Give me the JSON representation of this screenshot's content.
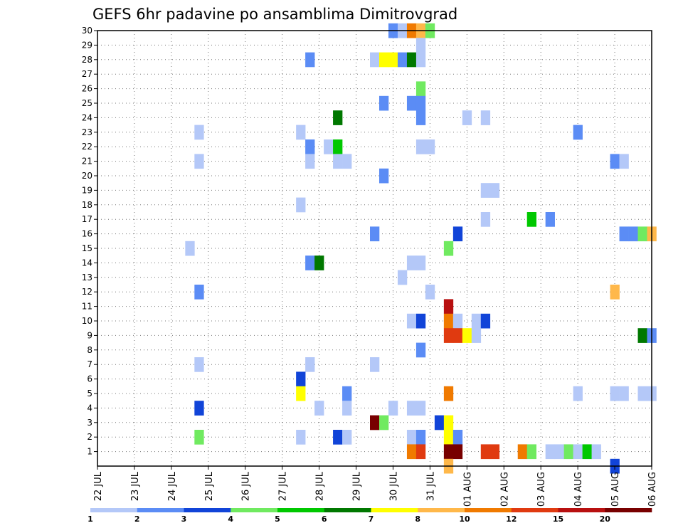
{
  "chart_data": {
    "type": "heatmap",
    "title": "GEFS 6hr padavine po ansamblima Dimitrovgrad",
    "x_ticks": [
      "22 JUL",
      "23 JUL",
      "24 JUL",
      "25 JUL",
      "26 JUL",
      "27 JUL",
      "28 JUL",
      "29 JUL",
      "30 JUL",
      "31 JUL",
      "01 AUG",
      "02 AUG",
      "03 AUG",
      "04 AUG",
      "05 AUG",
      "06 AUG"
    ],
    "xlim": [
      0,
      60
    ],
    "y_ticks": [
      "1",
      "2",
      "3",
      "4",
      "5",
      "6",
      "7",
      "8",
      "9",
      "10",
      "11",
      "12",
      "13",
      "14",
      "15",
      "16",
      "17",
      "18",
      "19",
      "20",
      "21",
      "22",
      "23",
      "24",
      "25",
      "26",
      "27",
      "28",
      "29",
      "30"
    ],
    "ylim": [
      0,
      30
    ],
    "colorbar_labels": [
      "1",
      "2",
      "3",
      "4",
      "5",
      "6",
      "7",
      "8",
      "10",
      "12",
      "15",
      "20"
    ],
    "colors": [
      "#b4c8f8",
      "#5b8cf5",
      "#1144d8",
      "#70ea60",
      "#00c800",
      "#007800",
      "#ffff00",
      "#ffb84a",
      "#f07a00",
      "#e03a10",
      "#b81010",
      "#780000"
    ],
    "cells": [
      [
        32,
        30,
        1
      ],
      [
        33,
        30,
        0
      ],
      [
        34,
        30,
        8
      ],
      [
        35,
        30,
        7
      ],
      [
        36,
        30,
        3
      ],
      [
        35,
        29,
        0
      ],
      [
        23,
        28,
        1
      ],
      [
        30,
        28,
        0
      ],
      [
        31,
        28,
        6
      ],
      [
        32,
        28,
        6
      ],
      [
        33,
        28,
        1
      ],
      [
        34,
        28,
        5
      ],
      [
        35,
        28,
        0
      ],
      [
        35,
        26,
        3
      ],
      [
        31,
        25,
        1
      ],
      [
        34,
        25,
        1
      ],
      [
        35,
        25,
        1
      ],
      [
        26,
        24,
        5
      ],
      [
        35,
        24,
        1
      ],
      [
        40,
        24,
        0
      ],
      [
        42,
        24,
        0
      ],
      [
        11,
        23,
        0
      ],
      [
        22,
        23,
        0
      ],
      [
        52,
        23,
        1
      ],
      [
        23,
        22,
        1
      ],
      [
        25,
        22,
        0
      ],
      [
        26,
        22,
        4
      ],
      [
        35,
        22,
        0
      ],
      [
        36,
        22,
        0
      ],
      [
        11,
        21,
        0
      ],
      [
        23,
        21,
        0
      ],
      [
        26,
        21,
        0
      ],
      [
        27,
        21,
        0
      ],
      [
        56,
        21,
        1
      ],
      [
        57,
        21,
        0
      ],
      [
        31,
        20,
        1
      ],
      [
        42,
        19,
        0
      ],
      [
        43,
        19,
        0
      ],
      [
        22,
        18,
        0
      ],
      [
        42,
        17,
        0
      ],
      [
        47,
        17,
        4
      ],
      [
        49,
        17,
        1
      ],
      [
        30,
        16,
        1
      ],
      [
        39,
        16,
        2
      ],
      [
        57,
        16,
        1
      ],
      [
        58,
        16,
        1
      ],
      [
        59,
        16,
        3
      ],
      [
        60,
        16,
        7
      ],
      [
        10,
        15,
        0
      ],
      [
        38,
        15,
        3
      ],
      [
        23,
        14,
        1
      ],
      [
        24,
        14,
        5
      ],
      [
        34,
        14,
        0
      ],
      [
        35,
        14,
        0
      ],
      [
        33,
        13,
        0
      ],
      [
        11,
        12,
        1
      ],
      [
        36,
        12,
        0
      ],
      [
        56,
        12,
        7
      ],
      [
        38,
        11,
        10
      ],
      [
        34,
        10,
        0
      ],
      [
        35,
        10,
        2
      ],
      [
        38,
        10,
        8
      ],
      [
        39,
        10,
        0
      ],
      [
        41,
        10,
        0
      ],
      [
        42,
        10,
        2
      ],
      [
        38,
        9,
        9
      ],
      [
        39,
        9,
        9
      ],
      [
        40,
        9,
        6
      ],
      [
        41,
        9,
        0
      ],
      [
        59,
        9,
        5
      ],
      [
        60,
        9,
        1
      ],
      [
        35,
        8,
        1
      ],
      [
        11,
        7,
        0
      ],
      [
        23,
        7,
        0
      ],
      [
        30,
        7,
        0
      ],
      [
        22,
        6,
        2
      ],
      [
        22,
        5,
        6
      ],
      [
        27,
        5,
        1
      ],
      [
        38,
        5,
        8
      ],
      [
        52,
        5,
        0
      ],
      [
        56,
        5,
        0
      ],
      [
        57,
        5,
        0
      ],
      [
        59,
        5,
        0
      ],
      [
        60,
        5,
        0
      ],
      [
        11,
        4,
        2
      ],
      [
        24,
        4,
        0
      ],
      [
        27,
        4,
        0
      ],
      [
        32,
        4,
        0
      ],
      [
        34,
        4,
        0
      ],
      [
        35,
        4,
        0
      ],
      [
        30,
        3,
        11
      ],
      [
        31,
        3,
        3
      ],
      [
        37,
        3,
        2
      ],
      [
        38,
        3,
        6
      ],
      [
        11,
        2,
        3
      ],
      [
        22,
        2,
        0
      ],
      [
        26,
        2,
        2
      ],
      [
        27,
        2,
        0
      ],
      [
        34,
        2,
        0
      ],
      [
        35,
        2,
        1
      ],
      [
        38,
        2,
        6
      ],
      [
        39,
        2,
        1
      ],
      [
        34,
        1,
        8
      ],
      [
        35,
        1,
        9
      ],
      [
        38,
        1,
        11
      ],
      [
        39,
        1,
        11
      ],
      [
        42,
        1,
        9
      ],
      [
        43,
        1,
        9
      ],
      [
        46,
        1,
        8
      ],
      [
        47,
        1,
        3
      ],
      [
        49,
        1,
        0
      ],
      [
        50,
        1,
        0
      ],
      [
        51,
        1,
        3
      ],
      [
        52,
        1,
        0
      ],
      [
        53,
        1,
        4
      ],
      [
        54,
        1,
        0
      ],
      [
        38,
        0,
        7
      ],
      [
        56,
        0,
        2
      ]
    ]
  }
}
